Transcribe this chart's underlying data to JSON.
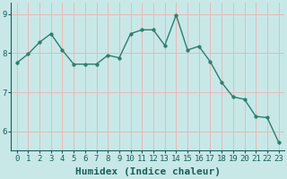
{
  "x": [
    0,
    1,
    2,
    3,
    4,
    5,
    6,
    7,
    8,
    9,
    10,
    11,
    12,
    13,
    14,
    15,
    16,
    17,
    18,
    19,
    20,
    21,
    22,
    23
  ],
  "y": [
    7.75,
    7.98,
    8.28,
    8.5,
    8.08,
    7.72,
    7.72,
    7.72,
    7.95,
    7.88,
    8.5,
    8.6,
    8.6,
    8.2,
    8.98,
    8.08,
    8.18,
    7.78,
    7.25,
    6.88,
    6.82,
    6.38,
    6.35,
    5.72
  ],
  "line_color": "#2e7d6e",
  "marker": "o",
  "markersize": 2.5,
  "linewidth": 1.0,
  "bg_color": "#c8e8e8",
  "grid_color": "#e8b8b8",
  "xlabel": "Humidex (Indice chaleur)",
  "xlabel_fontsize": 8,
  "xlim": [
    -0.5,
    23.5
  ],
  "ylim": [
    5.5,
    9.3
  ],
  "yticks": [
    6,
    7,
    8,
    9
  ],
  "xtick_labels": [
    "0",
    "1",
    "2",
    "3",
    "4",
    "5",
    "6",
    "7",
    "8",
    "9",
    "10",
    "11",
    "12",
    "13",
    "14",
    "15",
    "16",
    "17",
    "18",
    "19",
    "20",
    "21",
    "22",
    "23"
  ],
  "tick_fontsize": 6.5,
  "xlabel_color": "#1a5f5a",
  "tick_color": "#1a5f5a",
  "spine_color": "#1a5f5a"
}
